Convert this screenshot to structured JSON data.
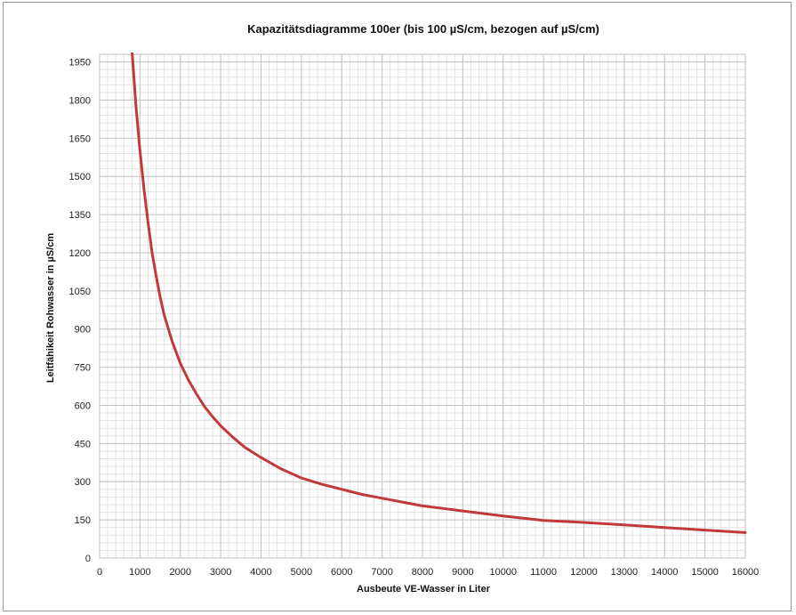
{
  "chart_data": {
    "type": "line",
    "title": "Kapazitätsdiagramme 100er (bis 100 µS/cm, bezogen auf µS/cm)",
    "xlabel": "Ausbeute VE-Wasser in Liter",
    "ylabel": "Leitfähikeit Rohwasser in µS/cm",
    "xlim": [
      0,
      16000
    ],
    "ylim": [
      0,
      1980
    ],
    "x_ticks": [
      "0",
      "1000",
      "2000",
      "3000",
      "4000",
      "5000",
      "6000",
      "7000",
      "8000",
      "9000",
      "10000",
      "11000",
      "12000",
      "13000",
      "14000",
      "15000",
      "16000"
    ],
    "y_ticks": [
      "0",
      "150",
      "300",
      "450",
      "600",
      "750",
      "900",
      "1050",
      "1200",
      "1350",
      "1500",
      "1650",
      "1800",
      "1950"
    ],
    "grid": true,
    "legend": "none",
    "series": [
      {
        "color": "#c0393b",
        "x": [
          800,
          900,
          1000,
          1100,
          1200,
          1300,
          1400,
          1500,
          1600,
          1800,
          2000,
          2200,
          2400,
          2600,
          2800,
          3000,
          3300,
          3600,
          4000,
          4500,
          5000,
          5500,
          6000,
          6500,
          7000,
          7500,
          8000,
          9000,
          10000,
          11000,
          12000,
          13000,
          14000,
          15000,
          16000
        ],
        "y": [
          2000,
          1780,
          1600,
          1450,
          1320,
          1200,
          1110,
          1025,
          955,
          850,
          765,
          700,
          645,
          595,
          555,
          520,
          475,
          435,
          395,
          350,
          315,
          290,
          270,
          250,
          235,
          220,
          205,
          185,
          165,
          148,
          140,
          130,
          120,
          110,
          100
        ]
      }
    ]
  }
}
